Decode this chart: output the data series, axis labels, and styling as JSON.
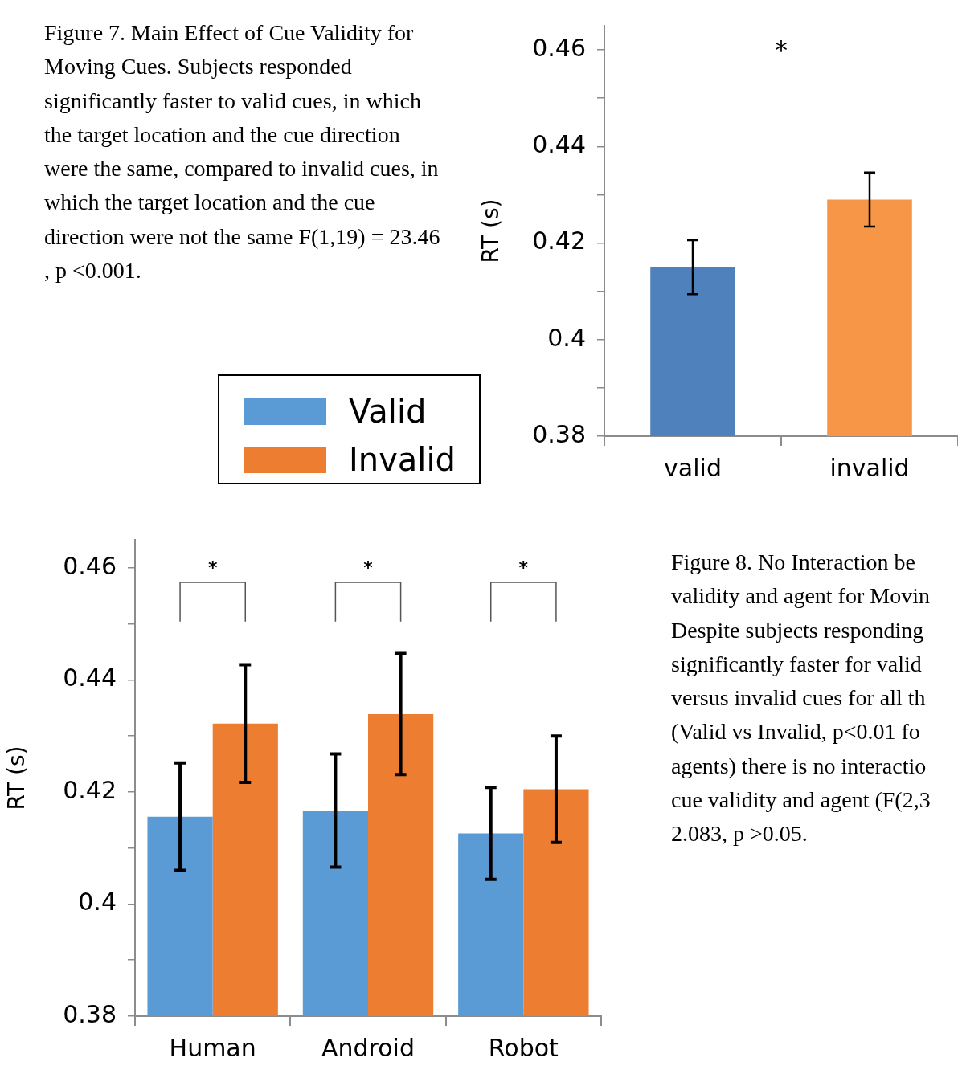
{
  "chart_data": [
    {
      "type": "bar",
      "ylabel": "RT (s)",
      "categories": [
        "valid",
        "invalid"
      ],
      "values": [
        0.415,
        0.429
      ],
      "errors": [
        0.0056,
        0.0056
      ],
      "colors": [
        "#4f81bd",
        "#f79646"
      ],
      "ylim": [
        0.38,
        0.465
      ],
      "yticks": [
        0.38,
        {
          "value": 0.39,
          "label": null
        },
        0.4,
        {
          "value": 0.41,
          "label": null
        },
        0.42,
        {
          "value": 0.43,
          "label": null
        },
        0.44,
        {
          "value": 0.45,
          "label": null
        },
        0.46
      ],
      "grid": false,
      "legend": false,
      "annotations": [
        "Figure 7. Main Effect of Cue Validity for Moving Cues. Subjects responded significantly faster to valid cues, in which the target location and the cue direction were the same, compared to invalid cues, in which the target location and the cue direction were not the same F(1,19) = 23.46 , p <0.001.",
        "*"
      ]
    },
    {
      "type": "bar",
      "ylabel": "RT (s)",
      "categories": [
        "Human",
        "Android",
        "Robot"
      ],
      "series": [
        {
          "name": "Valid",
          "color": "#5b9bd5",
          "values": [
            0.4156,
            0.4167,
            0.4126
          ],
          "errors": [
            0.0096,
            0.0101,
            0.0082
          ]
        },
        {
          "name": "Invalid",
          "color": "#ed7d31",
          "values": [
            0.4322,
            0.4339,
            0.4205
          ],
          "errors": [
            0.0105,
            0.0108,
            0.0095
          ]
        }
      ],
      "ylim": [
        0.38,
        0.465
      ],
      "yticks": [
        0.38,
        {
          "value": 0.39,
          "label": null
        },
        0.4,
        {
          "value": 0.41,
          "label": null
        },
        0.42,
        {
          "value": 0.43,
          "label": null
        },
        0.44,
        {
          "value": 0.45,
          "label": null
        },
        0.46
      ],
      "grid": false,
      "legend": "top",
      "annotations": [
        "Figure 8. No Interaction be",
        "validity and agent for Movin",
        "Despite subjects responding",
        "significantly faster for valid",
        "versus invalid cues for all th",
        "(Valid vs Invalid, p<0.01 fo",
        "agents) there is no interactio",
        "cue validity and agent (F(2,3",
        "2.083, p >0.05.",
        "*",
        "*",
        "*"
      ]
    }
  ]
}
